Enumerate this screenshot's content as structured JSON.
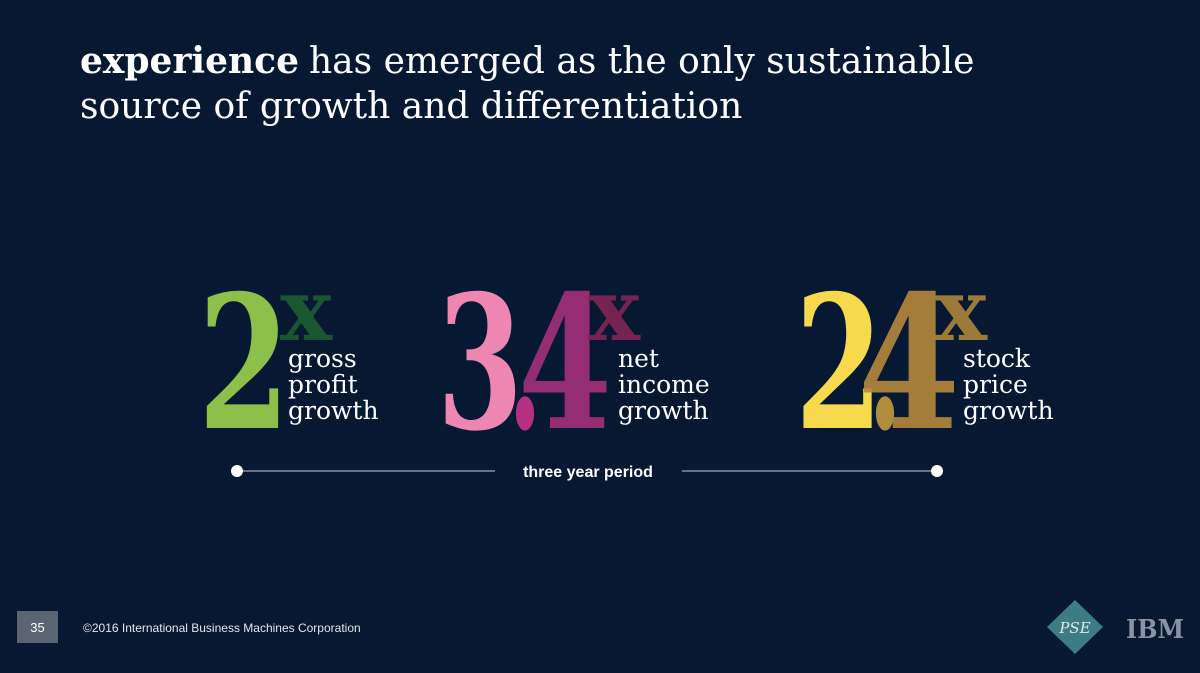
{
  "title": {
    "bold": "experience",
    "line1": "has emerged as the only sustainable",
    "line2": "source of growth and differentiation"
  },
  "stats": [
    {
      "digits": [
        "2"
      ],
      "digit_colors": [
        "#8dc04a"
      ],
      "suffix": "x",
      "suffix_color": "#1d5a33",
      "label": [
        "gross",
        "profit",
        "growth"
      ]
    },
    {
      "digits": [
        "3",
        ".",
        "4"
      ],
      "digit_colors": [
        "#ee86b2",
        "#c8328c",
        "#a5307c"
      ],
      "suffix": "x",
      "suffix_color": "#7b2553",
      "label": [
        "net",
        "income",
        "growth"
      ]
    },
    {
      "digits": [
        "2",
        ".",
        "4"
      ],
      "digit_colors": [
        "#f6d94d",
        "#c29a3e",
        "#b5893b"
      ],
      "suffix": "x",
      "suffix_color": "#a4803c",
      "label": [
        "stock",
        "price",
        "growth"
      ]
    }
  ],
  "timeline": "three year period",
  "footer": {
    "page": "35",
    "copyright": "©2016 International Business Machines Corporation",
    "logos": [
      "PSE",
      "IBM"
    ]
  }
}
